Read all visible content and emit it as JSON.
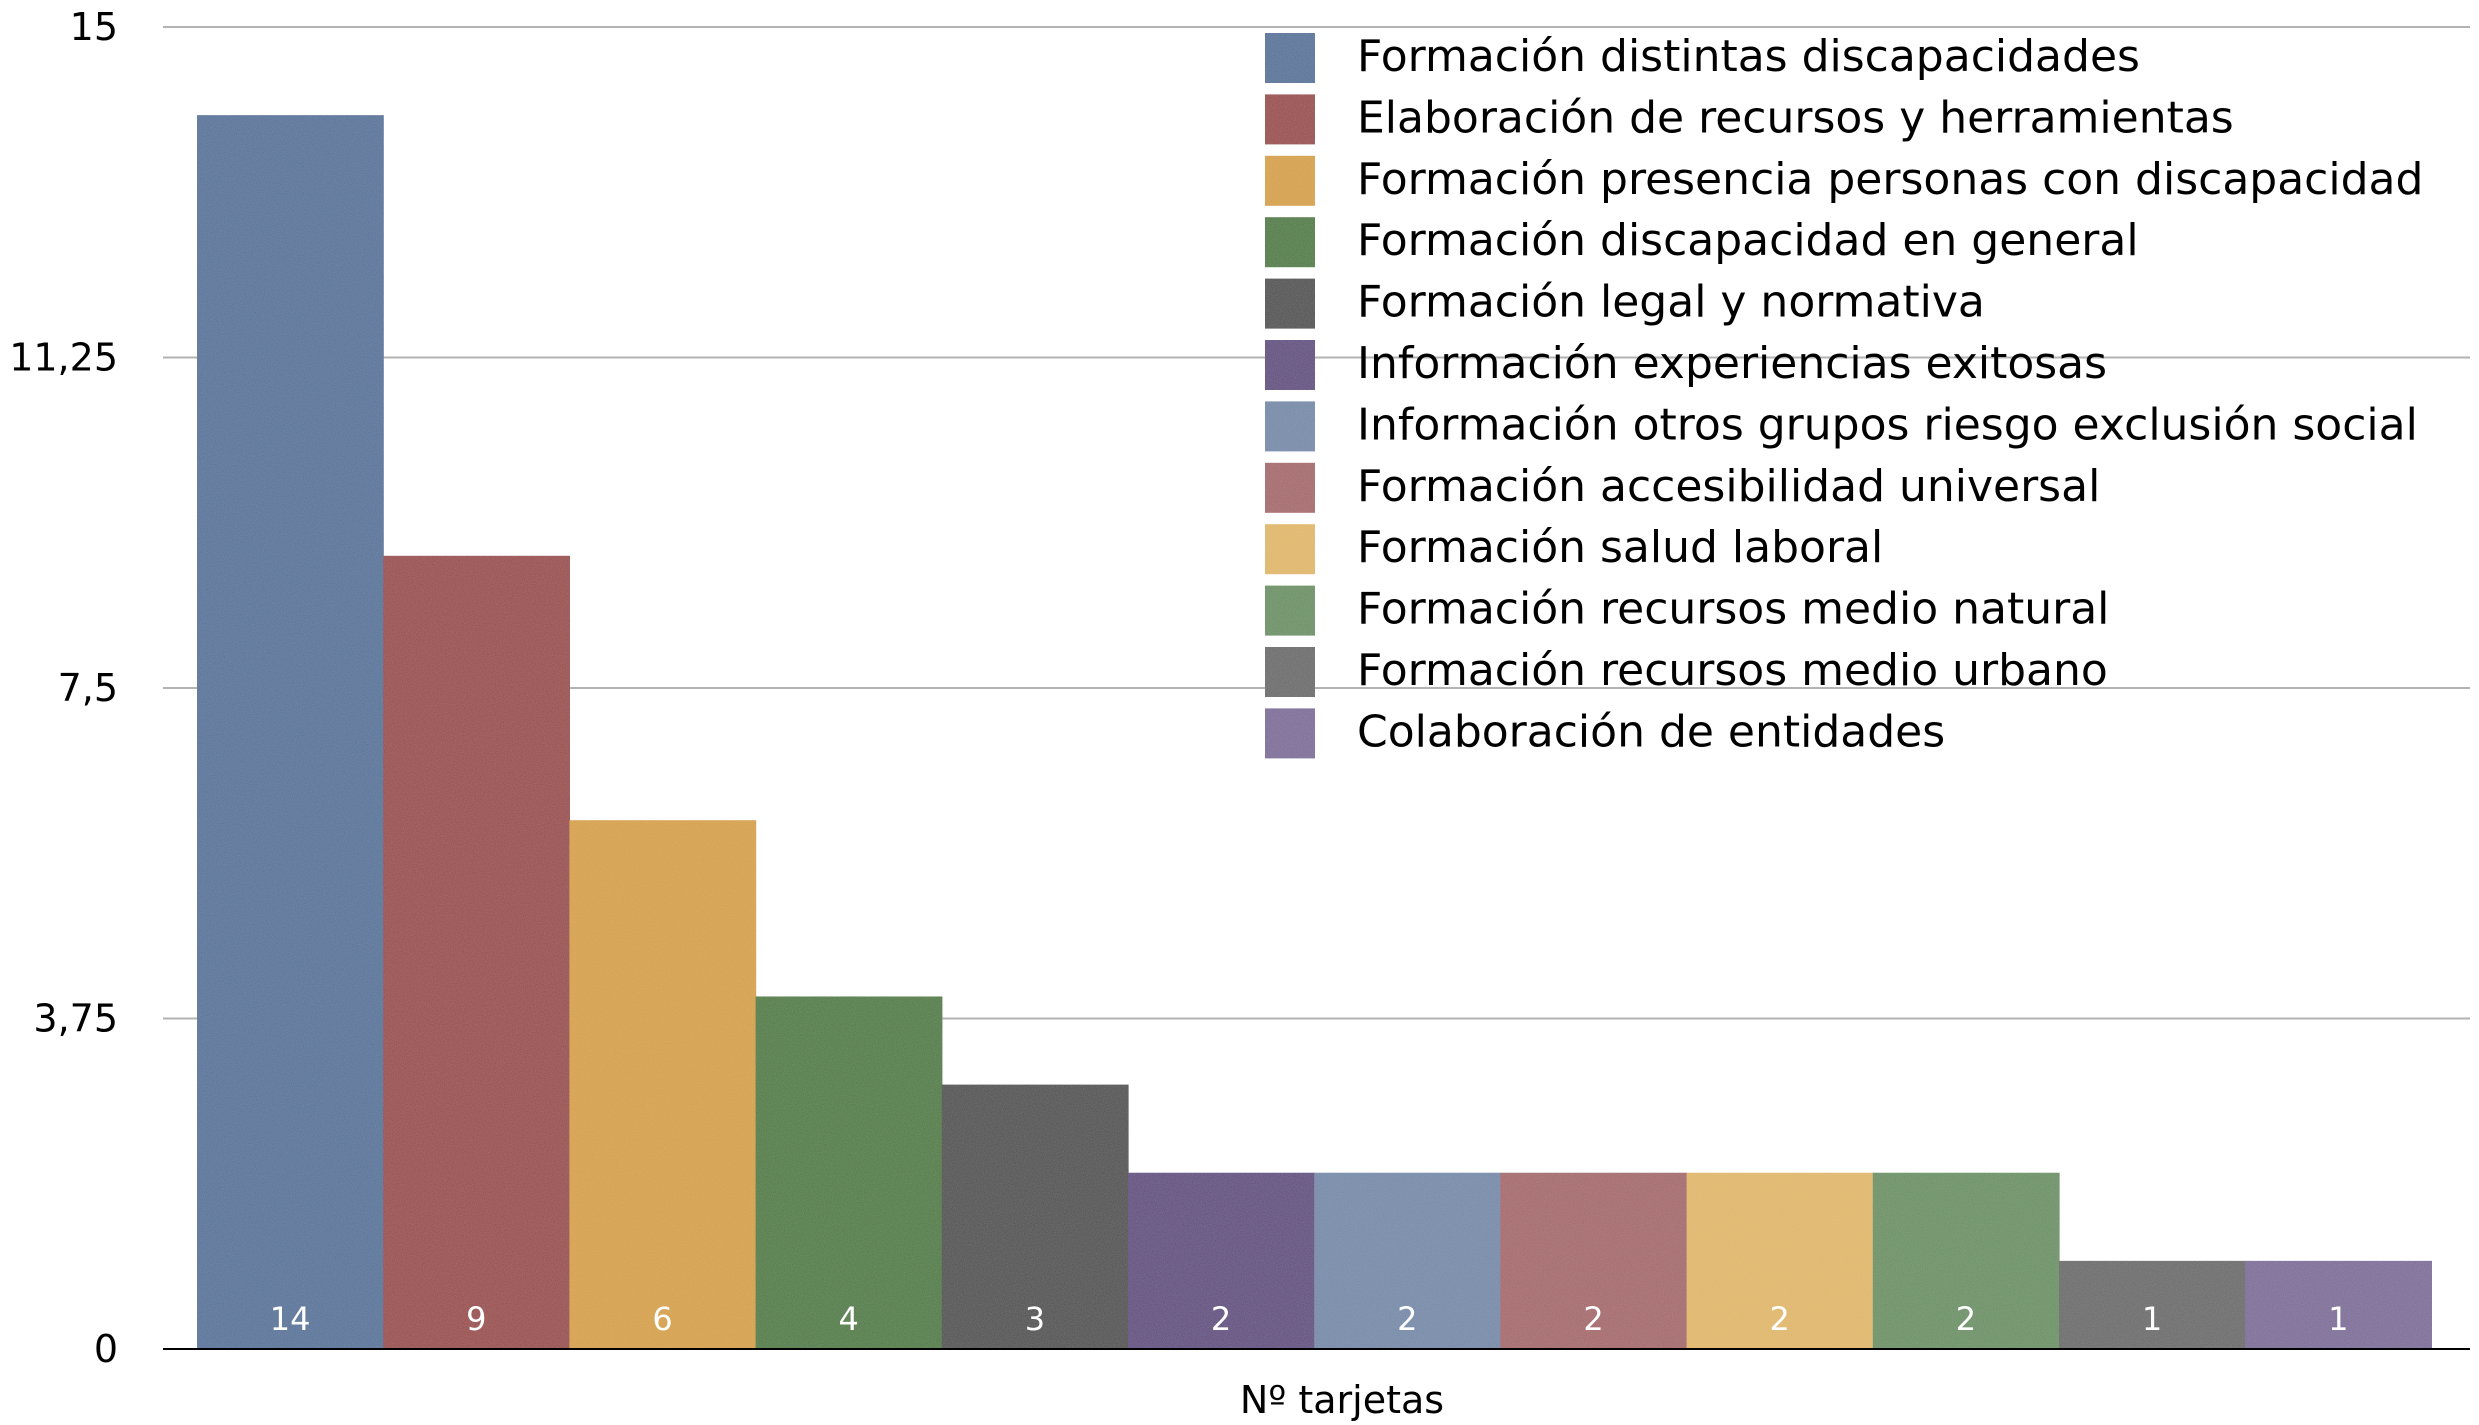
{
  "chart_data": {
    "type": "bar",
    "title": "",
    "xlabel": "Nº tarjetas",
    "ylabel": "",
    "ylim": [
      0,
      15
    ],
    "yticks": [
      "0",
      "3,75",
      "7,5",
      "11,25",
      "15"
    ],
    "grid": true,
    "legend_position": "top-right",
    "series": [
      {
        "name": "Formación distintas discapacidades",
        "value": 14,
        "label": "14",
        "color": "#55729a"
      },
      {
        "name": "Elaboración de recursos y herramientas",
        "value": 9,
        "label": "9",
        "color": "#9a4a4a"
      },
      {
        "name": "Formación presencia personas con discapacidad",
        "value": 6,
        "label": "6",
        "color": "#d6a043"
      },
      {
        "name": "Formación discapacidad en general",
        "value": 4,
        "label": "4",
        "color": "#4d7c40"
      },
      {
        "name": "Formación legal y normativa",
        "value": 3,
        "label": "3",
        "color": "#505050"
      },
      {
        "name": "Información experiencias exitosas",
        "value": 2,
        "label": "2",
        "color": "#614c80"
      },
      {
        "name": "Información otros grupos riesgo exclusión social",
        "value": 2,
        "label": "2",
        "color": "#7489a8"
      },
      {
        "name": "Formación accesibilidad universal",
        "value": 2,
        "label": "2",
        "color": "#a5686b"
      },
      {
        "name": "Formación salud laboral",
        "value": 2,
        "label": "2",
        "color": "#e0b767"
      },
      {
        "name": "Formación recursos medio natural",
        "value": 2,
        "label": "2",
        "color": "#6b9164"
      },
      {
        "name": "Formación recursos medio urbano",
        "value": 1,
        "label": "1",
        "color": "#6a6a6a"
      },
      {
        "name": "Colaboración de entidades",
        "value": 1,
        "label": "1",
        "color": "#7d6c98"
      }
    ]
  }
}
